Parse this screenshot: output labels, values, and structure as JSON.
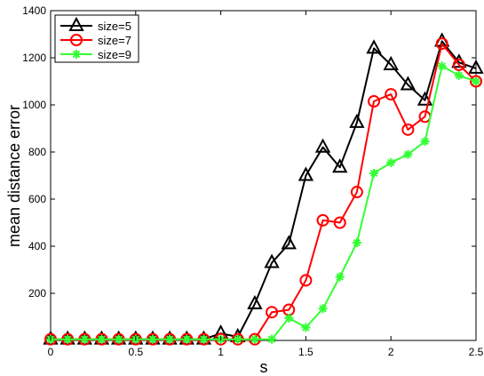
{
  "chart_data": {
    "type": "line",
    "xlabel": "s",
    "ylabel": "mean distance error",
    "xlim": [
      0,
      2.5
    ],
    "ylim": [
      0,
      1400
    ],
    "xticks": [
      0,
      0.5,
      1,
      1.5,
      2,
      2.5
    ],
    "xtick_labels": [
      "0",
      "0.5",
      "1",
      "1.5",
      "2",
      "2.5"
    ],
    "yticks": [
      200,
      400,
      600,
      800,
      1000,
      1200,
      1400
    ],
    "ytick_labels": [
      "200",
      "400",
      "600",
      "800",
      "1000",
      "1200",
      "1400"
    ],
    "grid": false,
    "legend_position": "top-left",
    "x": [
      0,
      0.1,
      0.2,
      0.3,
      0.4,
      0.5,
      0.6,
      0.7,
      0.8,
      0.9,
      1.0,
      1.1,
      1.2,
      1.3,
      1.4,
      1.5,
      1.6,
      1.7,
      1.8,
      1.9,
      2.0,
      2.1,
      2.2,
      2.3,
      2.4,
      2.5
    ],
    "series": [
      {
        "name": "size=5",
        "color": "#000000",
        "marker": "triangle",
        "values": [
          5,
          5,
          5,
          5,
          5,
          5,
          5,
          5,
          5,
          5,
          30,
          15,
          155,
          330,
          410,
          700,
          820,
          735,
          925,
          1240,
          1170,
          1085,
          1020,
          1270,
          1180,
          1155
        ]
      },
      {
        "name": "size=7",
        "color": "#ff0000",
        "marker": "circle",
        "values": [
          5,
          5,
          5,
          5,
          5,
          5,
          5,
          5,
          5,
          5,
          5,
          5,
          5,
          120,
          130,
          255,
          510,
          500,
          630,
          1015,
          1045,
          895,
          950,
          1260,
          1170,
          1100
        ]
      },
      {
        "name": "size=9",
        "color": "#33ff33",
        "marker": "asterisk",
        "values": [
          5,
          5,
          5,
          5,
          5,
          5,
          5,
          5,
          5,
          5,
          5,
          5,
          5,
          5,
          95,
          55,
          135,
          270,
          415,
          710,
          755,
          790,
          845,
          1165,
          1125,
          1100
        ]
      }
    ]
  }
}
